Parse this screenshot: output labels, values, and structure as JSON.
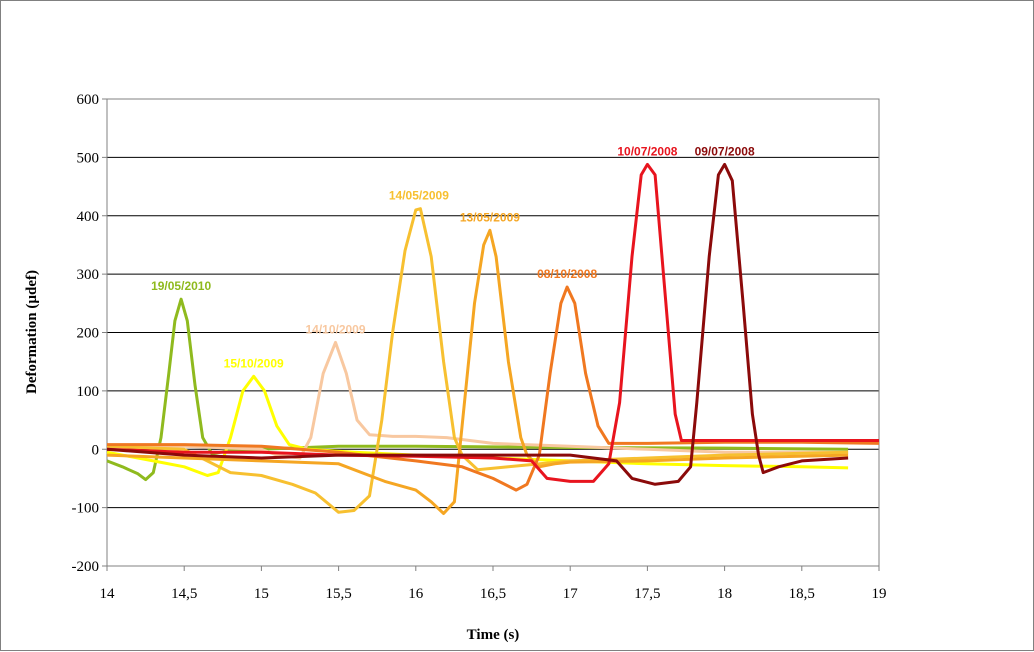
{
  "chart_data": {
    "type": "line",
    "title": "",
    "xlabel": "Time (s)",
    "ylabel": "Deformation (µdef)",
    "xlim": [
      14,
      19
    ],
    "ylim": [
      -200,
      600
    ],
    "xticks": [
      14,
      14.5,
      15,
      15.5,
      16,
      16.5,
      17,
      17.5,
      18,
      18.5,
      19
    ],
    "xtick_labels": [
      "14",
      "14,5",
      "15",
      "15,5",
      "16",
      "16,5",
      "17",
      "17,5",
      "18",
      "18,5",
      "19"
    ],
    "yticks": [
      -200,
      -100,
      0,
      100,
      200,
      300,
      400,
      500,
      600
    ],
    "ytick_labels": [
      "-200",
      "-100",
      "0",
      "100",
      "200",
      "300",
      "400",
      "500",
      "600"
    ],
    "grid": "horizontal",
    "legend": "peak labels",
    "series": [
      {
        "name": "19/05/2010",
        "color": "#8fba1e",
        "peak_x": 14.48,
        "peak_y": 257,
        "points": [
          [
            14.0,
            -20
          ],
          [
            14.1,
            -30
          ],
          [
            14.2,
            -42
          ],
          [
            14.25,
            -52
          ],
          [
            14.3,
            -40
          ],
          [
            14.35,
            20
          ],
          [
            14.4,
            130
          ],
          [
            14.44,
            220
          ],
          [
            14.48,
            257
          ],
          [
            14.52,
            220
          ],
          [
            14.57,
            110
          ],
          [
            14.62,
            20
          ],
          [
            14.68,
            -8
          ],
          [
            14.8,
            -2
          ],
          [
            15.0,
            0
          ],
          [
            15.5,
            5
          ],
          [
            16.0,
            5
          ],
          [
            17.0,
            3
          ],
          [
            18.0,
            2
          ],
          [
            18.8,
            0
          ]
        ]
      },
      {
        "name": "15/10/2009",
        "color": "#ffff00",
        "peak_x": 14.95,
        "peak_y": 125,
        "points": [
          [
            14.0,
            -5
          ],
          [
            14.3,
            -20
          ],
          [
            14.5,
            -30
          ],
          [
            14.65,
            -45
          ],
          [
            14.72,
            -40
          ],
          [
            14.8,
            20
          ],
          [
            14.88,
            100
          ],
          [
            14.95,
            125
          ],
          [
            15.02,
            100
          ],
          [
            15.1,
            40
          ],
          [
            15.18,
            8
          ],
          [
            15.3,
            0
          ],
          [
            15.6,
            -5
          ],
          [
            16.0,
            -10
          ],
          [
            16.5,
            -15
          ],
          [
            17.0,
            -20
          ],
          [
            17.5,
            -25
          ],
          [
            18.0,
            -28
          ],
          [
            18.5,
            -30
          ],
          [
            18.8,
            -32
          ]
        ]
      },
      {
        "name": "14/10/2009",
        "color": "#f8c8a0",
        "peak_x": 15.48,
        "peak_y": 183,
        "points": [
          [
            14.0,
            5
          ],
          [
            14.5,
            5
          ],
          [
            15.0,
            0
          ],
          [
            15.1,
            -10
          ],
          [
            15.25,
            -15
          ],
          [
            15.32,
            20
          ],
          [
            15.4,
            130
          ],
          [
            15.48,
            183
          ],
          [
            15.55,
            130
          ],
          [
            15.62,
            50
          ],
          [
            15.7,
            25
          ],
          [
            15.85,
            22
          ],
          [
            16.0,
            22
          ],
          [
            16.2,
            20
          ],
          [
            16.5,
            10
          ],
          [
            17.0,
            5
          ],
          [
            17.5,
            0
          ],
          [
            18.0,
            -5
          ],
          [
            18.8,
            -5
          ]
        ]
      },
      {
        "name": "14/05/2009",
        "color": "#f7c030",
        "peak_x": 16.02,
        "peak_y": 412,
        "points": [
          [
            14.0,
            5
          ],
          [
            14.5,
            0
          ],
          [
            14.8,
            -40
          ],
          [
            15.0,
            -45
          ],
          [
            15.2,
            -60
          ],
          [
            15.35,
            -75
          ],
          [
            15.5,
            -108
          ],
          [
            15.6,
            -105
          ],
          [
            15.7,
            -80
          ],
          [
            15.78,
            50
          ],
          [
            15.85,
            200
          ],
          [
            15.93,
            340
          ],
          [
            16.0,
            410
          ],
          [
            16.03,
            412
          ],
          [
            16.1,
            330
          ],
          [
            16.18,
            150
          ],
          [
            16.25,
            20
          ],
          [
            16.3,
            -10
          ],
          [
            16.4,
            -35
          ],
          [
            16.6,
            -30
          ],
          [
            17.0,
            -20
          ],
          [
            17.5,
            -15
          ],
          [
            18.0,
            -10
          ],
          [
            18.8,
            -5
          ]
        ]
      },
      {
        "name": "13/05/2009",
        "color": "#f5a623",
        "peak_x": 16.48,
        "peak_y": 375,
        "points": [
          [
            14.0,
            -10
          ],
          [
            14.5,
            -15
          ],
          [
            15.0,
            -20
          ],
          [
            15.5,
            -25
          ],
          [
            15.8,
            -55
          ],
          [
            16.0,
            -70
          ],
          [
            16.1,
            -90
          ],
          [
            16.18,
            -110
          ],
          [
            16.25,
            -90
          ],
          [
            16.3,
            40
          ],
          [
            16.38,
            250
          ],
          [
            16.44,
            350
          ],
          [
            16.48,
            375
          ],
          [
            16.52,
            330
          ],
          [
            16.6,
            150
          ],
          [
            16.68,
            20
          ],
          [
            16.72,
            -10
          ],
          [
            16.8,
            -30
          ],
          [
            16.9,
            -25
          ],
          [
            17.0,
            -22
          ],
          [
            17.5,
            -20
          ],
          [
            18.0,
            -15
          ],
          [
            18.8,
            -10
          ]
        ]
      },
      {
        "name": "08/10/2008",
        "color": "#f07820",
        "peak_x": 16.98,
        "peak_y": 278,
        "points": [
          [
            14.0,
            8
          ],
          [
            14.5,
            8
          ],
          [
            15.0,
            5
          ],
          [
            15.5,
            -5
          ],
          [
            16.0,
            -20
          ],
          [
            16.3,
            -30
          ],
          [
            16.5,
            -50
          ],
          [
            16.65,
            -70
          ],
          [
            16.72,
            -60
          ],
          [
            16.8,
            -10
          ],
          [
            16.87,
            130
          ],
          [
            16.94,
            250
          ],
          [
            16.98,
            278
          ],
          [
            17.03,
            250
          ],
          [
            17.1,
            130
          ],
          [
            17.18,
            40
          ],
          [
            17.25,
            10
          ],
          [
            17.5,
            10
          ],
          [
            18.0,
            12
          ],
          [
            18.5,
            12
          ],
          [
            19.0,
            10
          ]
        ]
      },
      {
        "name": "10/07/2008",
        "color": "#e8141e",
        "peak_x": 17.5,
        "peak_y": 488,
        "points": [
          [
            14.0,
            0
          ],
          [
            14.5,
            -5
          ],
          [
            15.0,
            -5
          ],
          [
            15.5,
            -10
          ],
          [
            16.0,
            -12
          ],
          [
            16.5,
            -15
          ],
          [
            16.75,
            -20
          ],
          [
            16.85,
            -50
          ],
          [
            17.0,
            -55
          ],
          [
            17.15,
            -55
          ],
          [
            17.25,
            -25
          ],
          [
            17.32,
            80
          ],
          [
            17.4,
            330
          ],
          [
            17.46,
            470
          ],
          [
            17.5,
            488
          ],
          [
            17.55,
            470
          ],
          [
            17.62,
            250
          ],
          [
            17.68,
            60
          ],
          [
            17.72,
            15
          ],
          [
            18.0,
            15
          ],
          [
            18.5,
            15
          ],
          [
            19.0,
            15
          ]
        ]
      },
      {
        "name": "09/07/2008",
        "color": "#8b0a0a",
        "peak_x": 18.0,
        "peak_y": 488,
        "points": [
          [
            14.0,
            0
          ],
          [
            14.5,
            -10
          ],
          [
            15.0,
            -15
          ],
          [
            15.5,
            -10
          ],
          [
            16.0,
            -10
          ],
          [
            16.5,
            -10
          ],
          [
            17.0,
            -10
          ],
          [
            17.3,
            -20
          ],
          [
            17.4,
            -50
          ],
          [
            17.55,
            -60
          ],
          [
            17.7,
            -55
          ],
          [
            17.78,
            -30
          ],
          [
            17.82,
            80
          ],
          [
            17.9,
            330
          ],
          [
            17.96,
            470
          ],
          [
            18.0,
            488
          ],
          [
            18.05,
            460
          ],
          [
            18.12,
            250
          ],
          [
            18.18,
            60
          ],
          [
            18.22,
            -10
          ],
          [
            18.25,
            -40
          ],
          [
            18.35,
            -30
          ],
          [
            18.5,
            -20
          ],
          [
            18.8,
            -15
          ]
        ]
      }
    ]
  }
}
